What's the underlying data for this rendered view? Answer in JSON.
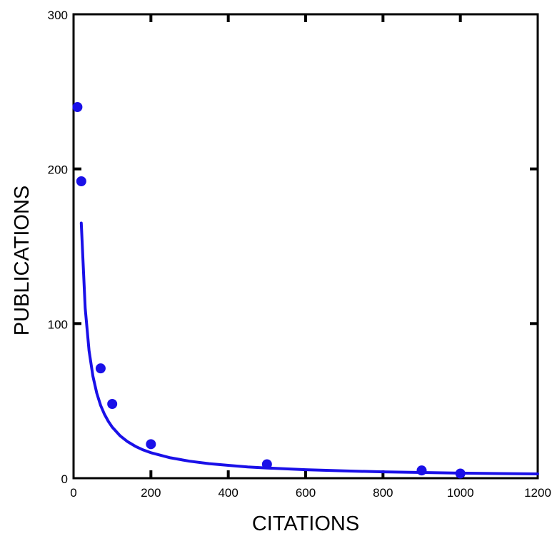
{
  "chart_data": {
    "type": "scatter",
    "title": "",
    "xlabel": "CITATIONS",
    "ylabel": "PUBLICATIONS",
    "xlim": [
      0,
      1200
    ],
    "ylim": [
      0,
      300
    ],
    "x_ticks": [
      0,
      200,
      400,
      600,
      800,
      1000,
      1200
    ],
    "y_ticks": [
      0,
      100,
      200,
      300
    ],
    "x_tick_labels": [
      "0",
      "200",
      "400",
      "600",
      "800",
      "1000",
      "1200"
    ],
    "y_tick_labels": [
      "0",
      "100",
      "200",
      "300"
    ],
    "grid": false,
    "legend": "none",
    "series": [
      {
        "type": "scatter",
        "x": [
          10,
          20,
          70,
          100,
          200,
          500,
          900,
          1000
        ],
        "y": [
          240,
          192,
          71,
          48,
          22,
          9,
          5,
          3
        ],
        "color": "#1a10e8"
      },
      {
        "type": "line",
        "x": [
          20,
          30,
          40,
          50,
          60,
          70,
          80,
          90,
          100,
          120,
          140,
          160,
          180,
          200,
          250,
          300,
          350,
          400,
          450,
          500,
          600,
          700,
          800,
          900,
          1000,
          1100,
          1200
        ],
        "y": [
          165,
          110,
          82.5,
          66,
          55,
          47.1,
          41.3,
          36.7,
          33,
          27.5,
          23.6,
          20.6,
          18.3,
          16.5,
          13.2,
          11,
          9.4,
          8.3,
          7.3,
          6.6,
          5.5,
          4.7,
          4.1,
          3.7,
          3.3,
          3.0,
          2.75
        ],
        "color": "#1a10e8"
      }
    ]
  }
}
